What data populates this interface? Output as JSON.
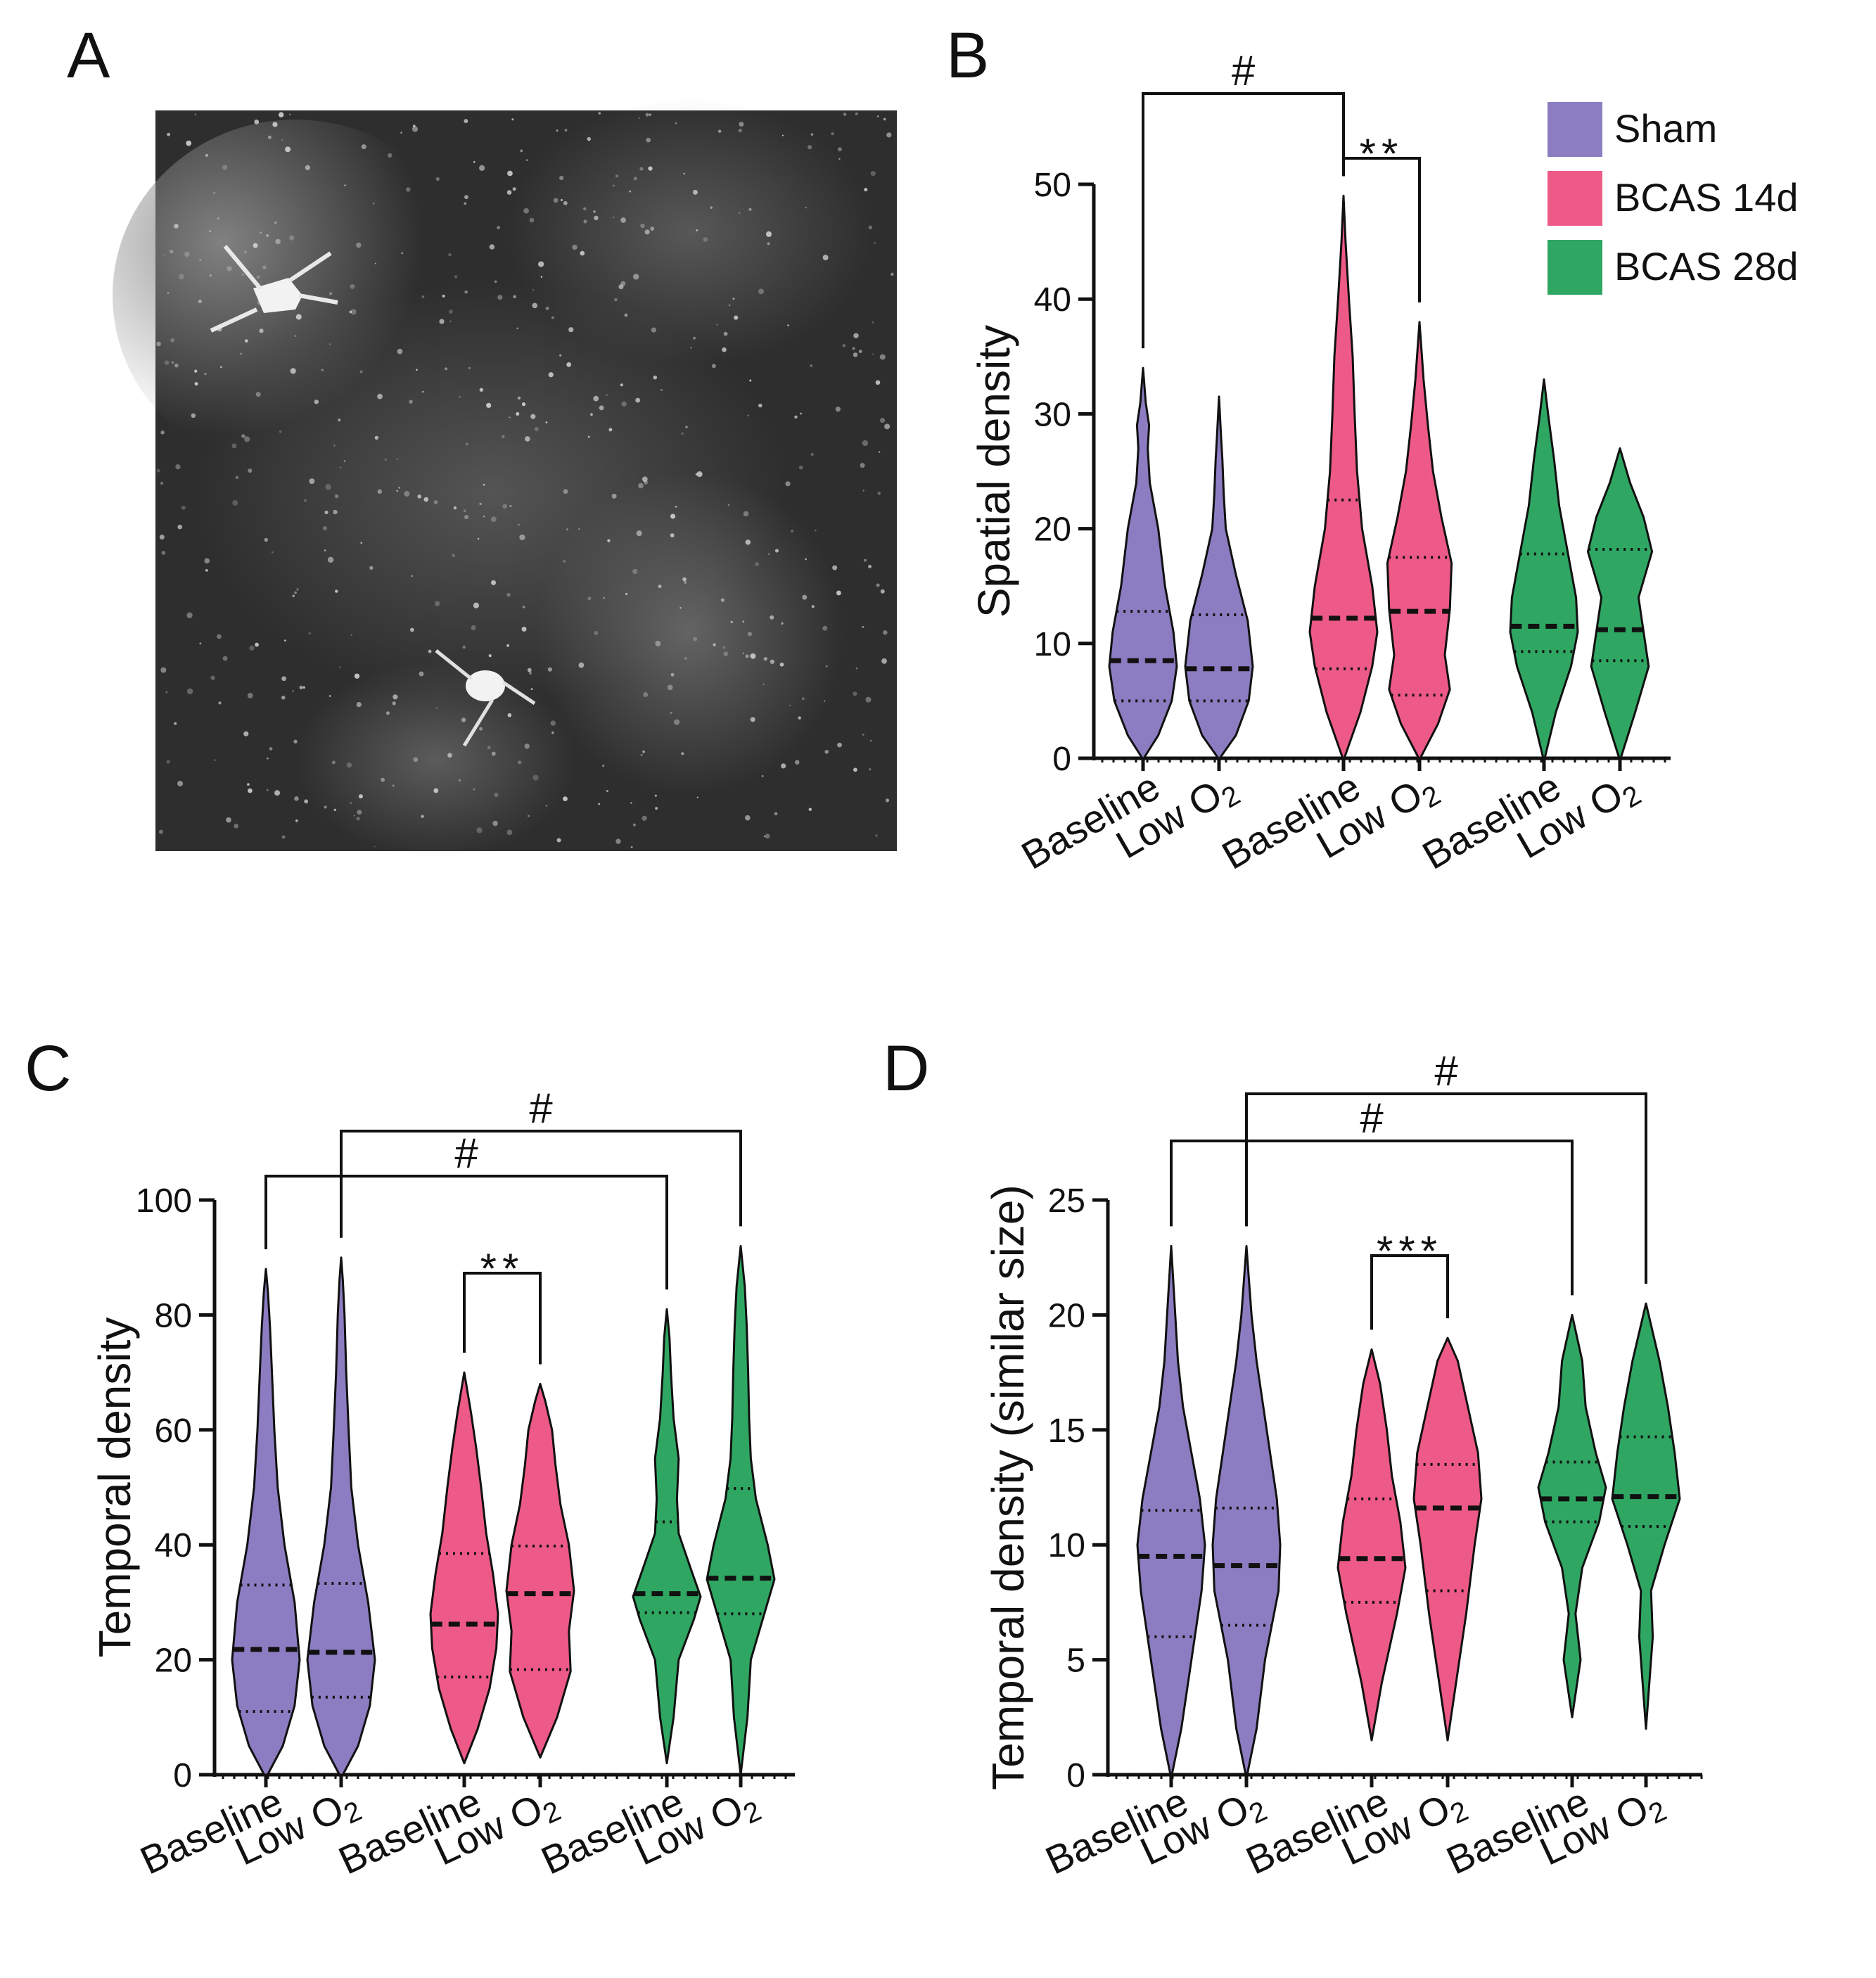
{
  "colors": {
    "sham": "#8C7DC2",
    "bcas14": "#EE5A87",
    "bcas28": "#2FA762",
    "ink": "#111111"
  },
  "legend": [
    {
      "name": "Sham",
      "color": "#8C7DC2"
    },
    {
      "name": "BCAS 14d",
      "color": "#EE5A87"
    },
    {
      "name": "BCAS 28d",
      "color": "#2FA762"
    }
  ],
  "panels": {
    "A": {
      "letter": "A",
      "image": "grayscale-microscopy-image"
    },
    "B": {
      "letter": "B"
    },
    "C": {
      "letter": "C"
    },
    "D": {
      "letter": "D"
    }
  },
  "chart_data": [
    {
      "panel": "B",
      "type": "violin",
      "ylabel": "Spatial density",
      "ylim": [
        0,
        50
      ],
      "yticks": [
        0,
        10,
        20,
        30,
        40,
        50
      ],
      "categories": [
        "Baseline",
        "Low O2",
        "Baseline",
        "Low O2",
        "Baseline",
        "Low O2"
      ],
      "groups": [
        "Sham",
        "Sham",
        "BCAS 14d",
        "BCAS 14d",
        "BCAS 28d",
        "BCAS 28d"
      ],
      "violins": [
        {
          "min": 0,
          "max": 34,
          "median": 8.5,
          "q1": 5,
          "q3": 12.8,
          "profile": [
            [
              0,
              0.02
            ],
            [
              2,
              0.45
            ],
            [
              5,
              0.85
            ],
            [
              8,
              1.0
            ],
            [
              11,
              0.9
            ],
            [
              15,
              0.65
            ],
            [
              20,
              0.45
            ],
            [
              24,
              0.2
            ],
            [
              27,
              0.14
            ],
            [
              29,
              0.18
            ],
            [
              31,
              0.08
            ],
            [
              34,
              0
            ]
          ]
        },
        {
          "min": 0,
          "max": 31.5,
          "median": 7.8,
          "q1": 5,
          "q3": 12.5,
          "profile": [
            [
              0,
              0.02
            ],
            [
              2,
              0.5
            ],
            [
              5,
              0.88
            ],
            [
              8,
              1.0
            ],
            [
              12,
              0.85
            ],
            [
              16,
              0.5
            ],
            [
              20,
              0.2
            ],
            [
              23,
              0.14
            ],
            [
              26,
              0.1
            ],
            [
              28,
              0.06
            ],
            [
              31.5,
              0
            ]
          ]
        },
        {
          "min": 0,
          "max": 49,
          "median": 12.2,
          "q1": 7.8,
          "q3": 22.5,
          "profile": [
            [
              0,
              0.02
            ],
            [
              4,
              0.5
            ],
            [
              8,
              0.85
            ],
            [
              11,
              1.0
            ],
            [
              15,
              0.85
            ],
            [
              20,
              0.55
            ],
            [
              25,
              0.4
            ],
            [
              30,
              0.33
            ],
            [
              35,
              0.27
            ],
            [
              40,
              0.16
            ],
            [
              45,
              0.06
            ],
            [
              49,
              0
            ]
          ]
        },
        {
          "min": 0,
          "max": 38,
          "median": 12.8,
          "q1": 5.5,
          "q3": 17.5,
          "profile": [
            [
              0,
              0.02
            ],
            [
              3,
              0.55
            ],
            [
              6,
              0.9
            ],
            [
              9,
              0.75
            ],
            [
              13,
              0.9
            ],
            [
              17,
              0.95
            ],
            [
              21,
              0.65
            ],
            [
              25,
              0.4
            ],
            [
              29,
              0.25
            ],
            [
              33,
              0.12
            ],
            [
              38,
              0
            ]
          ]
        },
        {
          "min": 0,
          "max": 33,
          "median": 11.5,
          "q1": 9.3,
          "q3": 17.8,
          "profile": [
            [
              0,
              0.02
            ],
            [
              4,
              0.35
            ],
            [
              8,
              0.8
            ],
            [
              11,
              1.0
            ],
            [
              14,
              0.95
            ],
            [
              18,
              0.7
            ],
            [
              22,
              0.45
            ],
            [
              26,
              0.3
            ],
            [
              30,
              0.12
            ],
            [
              33,
              0
            ]
          ]
        },
        {
          "min": 0,
          "max": 27,
          "median": 11.2,
          "q1": 8.5,
          "q3": 18.2,
          "profile": [
            [
              0,
              0.02
            ],
            [
              4,
              0.45
            ],
            [
              8,
              0.85
            ],
            [
              11,
              0.7
            ],
            [
              14,
              0.55
            ],
            [
              18,
              0.95
            ],
            [
              21,
              0.7
            ],
            [
              24,
              0.3
            ],
            [
              27,
              0
            ]
          ]
        }
      ],
      "brackets": [
        {
          "from": 0,
          "to": 2,
          "label": "#"
        },
        {
          "from": 2,
          "to": 3,
          "label": "**"
        }
      ]
    },
    {
      "panel": "C",
      "type": "violin",
      "ylabel": "Temporal density",
      "ylim": [
        0,
        100
      ],
      "yticks": [
        0,
        20,
        40,
        60,
        80,
        100
      ],
      "categories": [
        "Baseline",
        "Low O2",
        "Baseline",
        "Low O2",
        "Baseline",
        "Low O2"
      ],
      "groups": [
        "Sham",
        "Sham",
        "BCAS 14d",
        "BCAS 14d",
        "BCAS 28d",
        "BCAS 28d"
      ],
      "violins": [
        {
          "min": 0,
          "max": 88,
          "median": 21.8,
          "q1": 11,
          "q3": 33,
          "profile": [
            [
              0,
              0.05
            ],
            [
              5,
              0.5
            ],
            [
              12,
              0.85
            ],
            [
              20,
              1.0
            ],
            [
              30,
              0.85
            ],
            [
              40,
              0.55
            ],
            [
              50,
              0.35
            ],
            [
              60,
              0.25
            ],
            [
              70,
              0.18
            ],
            [
              78,
              0.12
            ],
            [
              84,
              0.06
            ],
            [
              88,
              0
            ]
          ]
        },
        {
          "min": 0,
          "max": 90,
          "median": 21.3,
          "q1": 13.5,
          "q3": 33.3,
          "profile": [
            [
              0,
              0.05
            ],
            [
              5,
              0.5
            ],
            [
              12,
              0.85
            ],
            [
              20,
              1.0
            ],
            [
              30,
              0.8
            ],
            [
              40,
              0.5
            ],
            [
              50,
              0.3
            ],
            [
              60,
              0.22
            ],
            [
              70,
              0.15
            ],
            [
              80,
              0.1
            ],
            [
              86,
              0.05
            ],
            [
              90,
              0
            ]
          ]
        },
        {
          "min": 2,
          "max": 70,
          "median": 26.2,
          "q1": 17,
          "q3": 38.5,
          "profile": [
            [
              2,
              0
            ],
            [
              8,
              0.4
            ],
            [
              15,
              0.75
            ],
            [
              22,
              0.95
            ],
            [
              28,
              1.0
            ],
            [
              35,
              0.85
            ],
            [
              42,
              0.65
            ],
            [
              50,
              0.5
            ],
            [
              57,
              0.35
            ],
            [
              63,
              0.2
            ],
            [
              70,
              0
            ]
          ]
        },
        {
          "min": 3,
          "max": 68,
          "median": 31.5,
          "q1": 18.3,
          "q3": 39.8,
          "profile": [
            [
              3,
              0
            ],
            [
              10,
              0.5
            ],
            [
              18,
              0.9
            ],
            [
              25,
              0.85
            ],
            [
              32,
              1.0
            ],
            [
              40,
              0.85
            ],
            [
              47,
              0.6
            ],
            [
              54,
              0.45
            ],
            [
              60,
              0.35
            ],
            [
              65,
              0.15
            ],
            [
              68,
              0
            ]
          ]
        },
        {
          "min": 2,
          "max": 81,
          "median": 31.5,
          "q1": 28.2,
          "q3": 44,
          "profile": [
            [
              2,
              0
            ],
            [
              10,
              0.2
            ],
            [
              20,
              0.35
            ],
            [
              27,
              0.8
            ],
            [
              31,
              1.0
            ],
            [
              36,
              0.7
            ],
            [
              42,
              0.35
            ],
            [
              48,
              0.3
            ],
            [
              55,
              0.35
            ],
            [
              62,
              0.2
            ],
            [
              70,
              0.12
            ],
            [
              76,
              0.08
            ],
            [
              81,
              0
            ]
          ]
        },
        {
          "min": 0,
          "max": 92,
          "median": 34.2,
          "q1": 28,
          "q3": 49.8,
          "profile": [
            [
              0,
              0
            ],
            [
              10,
              0.2
            ],
            [
              20,
              0.3
            ],
            [
              28,
              0.7
            ],
            [
              34,
              1.0
            ],
            [
              40,
              0.8
            ],
            [
              48,
              0.45
            ],
            [
              55,
              0.3
            ],
            [
              62,
              0.25
            ],
            [
              70,
              0.22
            ],
            [
              78,
              0.18
            ],
            [
              85,
              0.12
            ],
            [
              92,
              0
            ]
          ]
        }
      ],
      "brackets": [
        {
          "from": 0,
          "to": 4,
          "label": "#"
        },
        {
          "from": 1,
          "to": 5,
          "label": "#"
        },
        {
          "from": 2,
          "to": 3,
          "label": "**"
        }
      ]
    },
    {
      "panel": "D",
      "type": "violin",
      "ylabel": "Temporal density (similar size)",
      "ylim": [
        0,
        25
      ],
      "yticks": [
        0,
        5,
        10,
        15,
        20,
        25
      ],
      "categories": [
        "Baseline",
        "Low O2",
        "Baseline",
        "Low O2",
        "Baseline",
        "Low O2"
      ],
      "groups": [
        "Sham",
        "Sham",
        "BCAS 14d",
        "BCAS 14d",
        "BCAS 28d",
        "BCAS 28d"
      ],
      "violins": [
        {
          "min": 0,
          "max": 23,
          "median": 9.5,
          "q1": 6,
          "q3": 11.5,
          "profile": [
            [
              0,
              0.02
            ],
            [
              2,
              0.3
            ],
            [
              5,
              0.6
            ],
            [
              8,
              0.9
            ],
            [
              10,
              1.0
            ],
            [
              12,
              0.85
            ],
            [
              14,
              0.6
            ],
            [
              16,
              0.35
            ],
            [
              18,
              0.2
            ],
            [
              20,
              0.12
            ],
            [
              23,
              0
            ]
          ]
        },
        {
          "min": 0,
          "max": 23,
          "median": 9.1,
          "q1": 6.5,
          "q3": 11.6,
          "profile": [
            [
              0,
              0.02
            ],
            [
              2,
              0.3
            ],
            [
              5,
              0.55
            ],
            [
              8,
              0.95
            ],
            [
              10,
              1.0
            ],
            [
              12,
              0.9
            ],
            [
              14,
              0.7
            ],
            [
              16,
              0.5
            ],
            [
              18,
              0.3
            ],
            [
              20,
              0.15
            ],
            [
              23,
              0
            ]
          ]
        },
        {
          "min": 1.5,
          "max": 18.5,
          "median": 9.4,
          "q1": 7.5,
          "q3": 12,
          "profile": [
            [
              1.5,
              0
            ],
            [
              4,
              0.3
            ],
            [
              7,
              0.75
            ],
            [
              9,
              1.0
            ],
            [
              11,
              0.85
            ],
            [
              13,
              0.6
            ],
            [
              15,
              0.45
            ],
            [
              17,
              0.25
            ],
            [
              18.5,
              0
            ]
          ]
        },
        {
          "min": 1.5,
          "max": 19,
          "median": 11.6,
          "q1": 8,
          "q3": 13.5,
          "profile": [
            [
              1.5,
              0
            ],
            [
              4,
              0.25
            ],
            [
              7,
              0.55
            ],
            [
              10,
              0.8
            ],
            [
              12,
              1.0
            ],
            [
              14,
              0.9
            ],
            [
              16,
              0.6
            ],
            [
              18,
              0.3
            ],
            [
              19,
              0
            ]
          ]
        },
        {
          "min": 2.5,
          "max": 20,
          "median": 12,
          "q1": 11,
          "q3": 13.6,
          "profile": [
            [
              2.5,
              0
            ],
            [
              4,
              0.15
            ],
            [
              5,
              0.25
            ],
            [
              7,
              0.1
            ],
            [
              9,
              0.3
            ],
            [
              11,
              0.8
            ],
            [
              12.5,
              1.0
            ],
            [
              14,
              0.7
            ],
            [
              16,
              0.4
            ],
            [
              18,
              0.3
            ],
            [
              20,
              0
            ]
          ]
        },
        {
          "min": 2,
          "max": 20.5,
          "median": 12.1,
          "q1": 10.8,
          "q3": 14.7,
          "profile": [
            [
              2,
              0
            ],
            [
              4,
              0.1
            ],
            [
              6,
              0.2
            ],
            [
              8,
              0.15
            ],
            [
              10,
              0.55
            ],
            [
              12,
              1.0
            ],
            [
              14,
              0.85
            ],
            [
              16,
              0.65
            ],
            [
              18,
              0.4
            ],
            [
              20.5,
              0
            ]
          ]
        }
      ],
      "brackets": [
        {
          "from": 0,
          "to": 4,
          "label": "#"
        },
        {
          "from": 1,
          "to": 5,
          "label": "#"
        },
        {
          "from": 2,
          "to": 3,
          "label": "***"
        }
      ]
    }
  ]
}
